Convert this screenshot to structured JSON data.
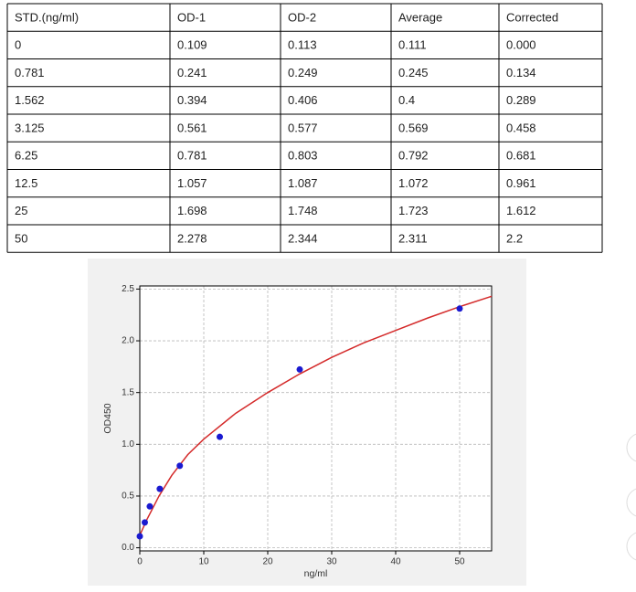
{
  "table": {
    "header": [
      "STD.(ng/ml)",
      "OD-1",
      "OD-2",
      "Average",
      "Corrected"
    ],
    "rows": [
      [
        "0",
        "0.109",
        "0.113",
        "0.111",
        "0.000"
      ],
      [
        "0.781",
        "0.241",
        "0.249",
        "0.245",
        "0.134"
      ],
      [
        "1.562",
        "0.394",
        "0.406",
        "0.4",
        "0.289"
      ],
      [
        "3.125",
        "0.561",
        "0.577",
        "0.569",
        "0.458"
      ],
      [
        "6.25",
        "0.781",
        "0.803",
        "0.792",
        "0.681"
      ],
      [
        "12.5",
        "1.057",
        "1.087",
        "1.072",
        "0.961"
      ],
      [
        "25",
        "1.698",
        "1.748",
        "1.723",
        "1.612"
      ],
      [
        "50",
        "2.278",
        "2.344",
        "2.311",
        "2.2"
      ]
    ]
  },
  "chart_data": {
    "type": "scatter",
    "x_label": "ng/ml",
    "y_label": "OD450",
    "x": [
      0,
      0.781,
      1.562,
      3.125,
      6.25,
      12.5,
      25,
      50
    ],
    "series": [
      {
        "color": "#1a1ad0",
        "values": [
          0.111,
          0.245,
          0.4,
          0.569,
          0.792,
          1.072,
          1.723,
          2.311
        ]
      }
    ],
    "curve": {
      "color": "#d42a2a",
      "x": [
        0,
        1,
        2,
        3,
        5,
        7.5,
        10,
        15,
        20,
        25,
        30,
        35,
        40,
        45,
        50,
        55
      ],
      "y": [
        0.12,
        0.26,
        0.38,
        0.5,
        0.7,
        0.9,
        1.05,
        1.3,
        1.5,
        1.68,
        1.84,
        1.98,
        2.1,
        2.22,
        2.33,
        2.43
      ]
    },
    "xlim": [
      0,
      55
    ],
    "ylim": [
      -0.03,
      2.53
    ],
    "xticks": [
      0,
      10,
      20,
      30,
      40,
      50
    ],
    "yticks": [
      {
        "value": 0,
        "label": "0.0"
      },
      0.5,
      {
        "value": 1,
        "label": "1.0"
      },
      1.5,
      {
        "value": 2,
        "label": "2.0"
      },
      2.5
    ],
    "grid": true
  }
}
